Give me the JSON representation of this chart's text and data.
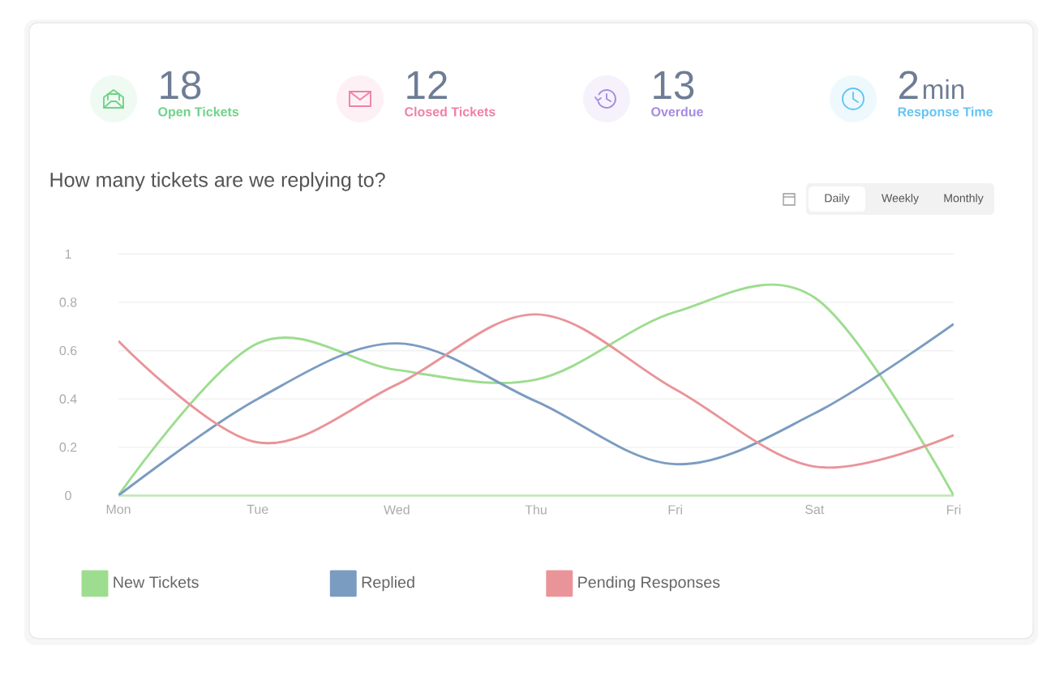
{
  "chart_data": [
    {
      "type": "other",
      "categories": [
        "Open Tickets",
        "Closed Tickets",
        "Overdue",
        "Response Time"
      ],
      "values": [
        18,
        12,
        13,
        2
      ],
      "data_labels": true,
      "annotations": [
        "min"
      ],
      "colors": [
        "#6fd389",
        "#f27fa5",
        "#a58be3",
        "#64c4f4"
      ]
    },
    {
      "type": "line",
      "title": "How many tickets are we replying to?",
      "categories": [
        "Mon",
        "Tue",
        "Wed",
        "Thu",
        "Fri",
        "Sat",
        "Fri"
      ],
      "series": [
        {
          "name": "New Tickets",
          "color": "#9ddd8f",
          "values": [
            0,
            0.63,
            0.52,
            0.48,
            0.76,
            0.82,
            0
          ]
        },
        {
          "name": "Replied",
          "color": "#7b9cc1",
          "values": [
            0,
            0.4,
            0.63,
            0.39,
            0.13,
            0.34,
            0.71
          ]
        },
        {
          "name": "Pending Responses",
          "color": "#e99499",
          "values": [
            0.64,
            0.22,
            0.46,
            0.75,
            0.44,
            0.12,
            0.25
          ]
        }
      ],
      "ylim": [
        0,
        1
      ],
      "yticks": [
        0,
        0.2,
        0.4,
        0.6,
        0.8,
        1
      ],
      "grid": "y",
      "legend": "bottom",
      "marker": "none",
      "annotations": [
        "Daily",
        "Weekly",
        "Monthly"
      ]
    }
  ]
}
